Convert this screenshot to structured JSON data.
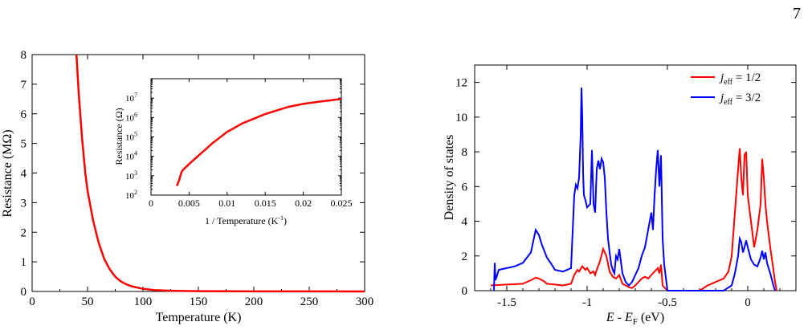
{
  "page": {
    "number": "7"
  },
  "chart_data": [
    {
      "type": "line",
      "xlabel": "Temperature (K)",
      "ylabel": "Resistance (MΩ)",
      "xlim": [
        0,
        300
      ],
      "ylim": [
        0,
        8
      ],
      "xticks": [
        0,
        50,
        100,
        150,
        200,
        250,
        300
      ],
      "yticks": [
        0,
        1,
        2,
        3,
        4,
        5,
        6,
        7,
        8
      ],
      "series": [
        {
          "color": "#ff0000",
          "x": [
            40,
            42,
            45,
            48,
            50,
            55,
            60,
            65,
            70,
            75,
            80,
            85,
            90,
            100,
            110,
            120,
            130,
            150,
            175,
            200,
            250,
            300
          ],
          "y": [
            8.0,
            6.7,
            5.2,
            4.0,
            3.4,
            2.4,
            1.65,
            1.1,
            0.75,
            0.5,
            0.34,
            0.24,
            0.17,
            0.09,
            0.05,
            0.03,
            0.02,
            0.01,
            0.006,
            0.004,
            0.002,
            0.001
          ]
        }
      ]
    },
    {
      "type": "line",
      "xlabel": "1 / Temperature (K",
      "xlabel_sup": "-1",
      "xlabel_end": ")",
      "ylabel": "Resistance (Ω)",
      "scale_y": "log",
      "xlim": [
        0,
        0.025
      ],
      "ylim": [
        100,
        100000000
      ],
      "xticks": [
        0,
        0.005,
        0.01,
        0.015,
        0.02,
        0.025
      ],
      "xticklabels": [
        "0",
        "0.005",
        "0.01",
        "0.015",
        "0.02",
        "0.025"
      ],
      "ytick_exponents": [
        2,
        3,
        4,
        5,
        6,
        7
      ],
      "series": [
        {
          "color": "#ff0000",
          "x": [
            0.0034,
            0.0037,
            0.004,
            0.0042,
            0.005,
            0.006,
            0.007,
            0.008,
            0.01,
            0.012,
            0.015,
            0.018,
            0.02,
            0.022,
            0.025
          ],
          "y": [
            300,
            600,
            1500,
            2000,
            4000,
            9000,
            20000,
            45000,
            180000,
            500000,
            1500000,
            3500000,
            5000000,
            6500000,
            9000000
          ]
        }
      ]
    },
    {
      "type": "line",
      "xlabel_parts": [
        "E",
        " - ",
        "E",
        "F",
        " (eV)"
      ],
      "ylabel": "Density of states",
      "xlim": [
        -1.7,
        0.3
      ],
      "ylim": [
        0,
        13
      ],
      "xticks": [
        -1.5,
        -1,
        -0.5,
        0
      ],
      "xticklabels": [
        "-1.5",
        "-1",
        "-0.5",
        "0"
      ],
      "yticks": [
        0,
        2,
        4,
        6,
        8,
        10,
        12
      ],
      "legend_position": "top-right",
      "series": [
        {
          "name_main": "j",
          "name_sub": "eff",
          "name_rest": " = 1/2",
          "color": "#ff0000",
          "x": [
            -1.6,
            -1.5,
            -1.4,
            -1.35,
            -1.32,
            -1.3,
            -1.27,
            -1.25,
            -1.2,
            -1.15,
            -1.1,
            -1.08,
            -1.06,
            -1.05,
            -1.03,
            -1.01,
            -1.0,
            -0.98,
            -0.96,
            -0.95,
            -0.94,
            -0.92,
            -0.9,
            -0.88,
            -0.86,
            -0.84,
            -0.82,
            -0.8,
            -0.78,
            -0.76,
            -0.74,
            -0.72,
            -0.7,
            -0.68,
            -0.66,
            -0.64,
            -0.62,
            -0.6,
            -0.58,
            -0.56,
            -0.55,
            -0.54,
            -0.53,
            -0.5,
            -0.4,
            -0.3,
            -0.25,
            -0.2,
            -0.15,
            -0.12,
            -0.1,
            -0.08,
            -0.06,
            -0.05,
            -0.04,
            -0.03,
            -0.02,
            -0.01,
            0.0,
            0.02,
            0.04,
            0.06,
            0.08,
            0.09,
            0.1,
            0.11,
            0.12,
            0.14,
            0.16,
            0.17,
            0.18
          ],
          "y": [
            0.3,
            0.35,
            0.4,
            0.6,
            0.75,
            0.7,
            0.55,
            0.4,
            0.35,
            0.3,
            0.4,
            0.9,
            1.2,
            1.1,
            1.4,
            1.2,
            1.3,
            1.0,
            1.1,
            0.9,
            1.2,
            1.7,
            2.4,
            2.0,
            1.1,
            0.8,
            0.7,
            0.9,
            0.4,
            0.3,
            0.2,
            0.15,
            0.3,
            0.5,
            0.7,
            0.8,
            0.7,
            0.9,
            1.1,
            1.3,
            1.0,
            1.5,
            0.3,
            0.0,
            0.0,
            0.0,
            0.3,
            0.5,
            0.7,
            1.1,
            2.0,
            4.5,
            7.0,
            8.2,
            6.5,
            5.5,
            7.8,
            8.0,
            5.5,
            4.0,
            2.5,
            3.5,
            5.0,
            7.6,
            6.5,
            5.0,
            4.0,
            2.5,
            1.2,
            0.5,
            0.0
          ]
        },
        {
          "name_main": "j",
          "name_sub": "eff",
          "name_rest": " = 3/2",
          "color": "#0000ff",
          "x": [
            -1.58,
            -1.575,
            -1.57,
            -1.55,
            -1.5,
            -1.45,
            -1.4,
            -1.35,
            -1.32,
            -1.3,
            -1.28,
            -1.25,
            -1.22,
            -1.2,
            -1.15,
            -1.1,
            -1.08,
            -1.07,
            -1.06,
            -1.05,
            -1.04,
            -1.035,
            -1.03,
            -1.025,
            -1.02,
            -1.01,
            -1.0,
            -0.98,
            -0.97,
            -0.96,
            -0.95,
            -0.94,
            -0.93,
            -0.92,
            -0.91,
            -0.9,
            -0.89,
            -0.88,
            -0.87,
            -0.86,
            -0.85,
            -0.84,
            -0.83,
            -0.82,
            -0.81,
            -0.8,
            -0.78,
            -0.76,
            -0.74,
            -0.72,
            -0.7,
            -0.68,
            -0.66,
            -0.64,
            -0.62,
            -0.6,
            -0.59,
            -0.58,
            -0.57,
            -0.56,
            -0.55,
            -0.54,
            -0.53,
            -0.52,
            -0.5,
            -0.4,
            -0.3,
            -0.2,
            -0.15,
            -0.1,
            -0.08,
            -0.06,
            -0.05,
            -0.04,
            -0.03,
            -0.02,
            -0.01,
            0.0,
            0.02,
            0.04,
            0.06,
            0.08,
            0.09,
            0.1,
            0.11,
            0.12,
            0.14,
            0.16,
            0.17
          ],
          "y": [
            0.0,
            1.6,
            0.6,
            1.2,
            1.3,
            1.4,
            1.6,
            2.2,
            3.5,
            3.2,
            2.6,
            1.9,
            1.5,
            1.2,
            1.1,
            1.3,
            5.5,
            6.1,
            5.9,
            6.5,
            9.0,
            11.7,
            10.0,
            6.8,
            5.5,
            5.2,
            4.8,
            5.0,
            8.1,
            5.0,
            4.5,
            7.0,
            7.5,
            7.0,
            7.6,
            7.4,
            6.5,
            4.5,
            3.0,
            2.2,
            1.5,
            1.2,
            1.0,
            2.0,
            1.8,
            2.4,
            1.0,
            0.5,
            0.3,
            0.5,
            0.9,
            1.3,
            2.0,
            2.5,
            3.5,
            4.5,
            3.5,
            5.5,
            7.0,
            8.1,
            6.0,
            7.8,
            3.0,
            1.5,
            0.0,
            0.0,
            0.0,
            0.0,
            0.0,
            0.3,
            1.0,
            2.0,
            3.0,
            2.8,
            2.2,
            2.5,
            2.9,
            2.5,
            1.8,
            1.5,
            1.4,
            1.9,
            2.3,
            1.8,
            2.2,
            1.6,
            1.0,
            0.3,
            0.0
          ]
        }
      ]
    }
  ]
}
